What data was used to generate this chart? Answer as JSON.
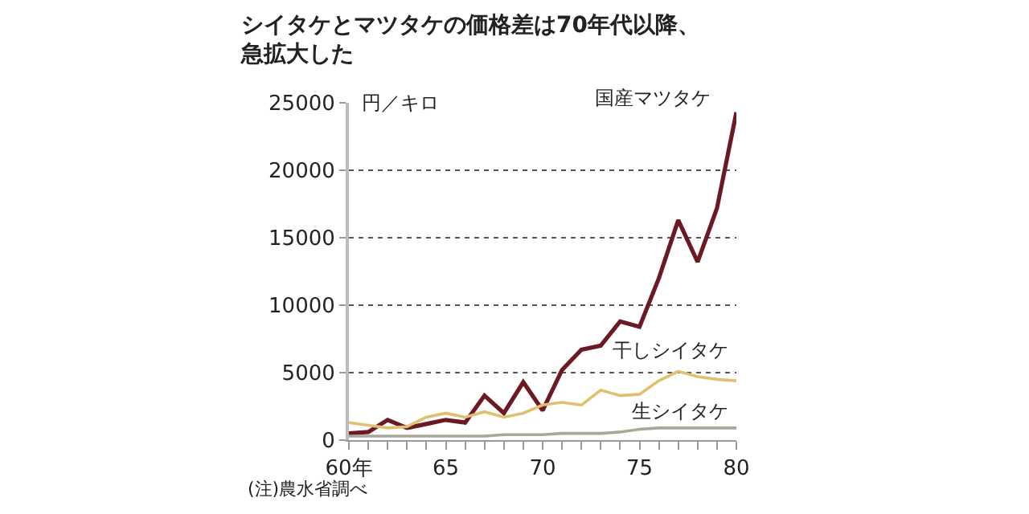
{
  "chart_data": {
    "type": "line",
    "title": "シイタケとマツタケの価格差は70年代以降、急拡大した",
    "ylabel": "円／キロ",
    "x": [
      60,
      61,
      62,
      63,
      64,
      65,
      66,
      67,
      68,
      69,
      70,
      71,
      72,
      73,
      74,
      75,
      76,
      77,
      78,
      79,
      80
    ],
    "series": [
      {
        "name": "国産マツタケ",
        "color": "#6b1a24",
        "values": [
          500,
          600,
          1500,
          900,
          1200,
          1500,
          1300,
          3300,
          2000,
          4300,
          2200,
          5200,
          6700,
          7000,
          8800,
          8400,
          12000,
          16300,
          13200,
          17200,
          24300
        ]
      },
      {
        "name": "干しシイタケ",
        "color": "#e0c070",
        "values": [
          1300,
          1100,
          900,
          1000,
          1700,
          2000,
          1700,
          2100,
          1700,
          2000,
          2600,
          2800,
          2600,
          3700,
          3300,
          3400,
          4400,
          5100,
          4700,
          4500,
          4400
        ]
      },
      {
        "name": "生シイタケ",
        "color": "#a8a898",
        "values": [
          300,
          300,
          300,
          300,
          300,
          300,
          300,
          300,
          400,
          400,
          400,
          500,
          500,
          500,
          600,
          800,
          900,
          900,
          900,
          900,
          900
        ]
      }
    ],
    "xlim": [
      60,
      80
    ],
    "ylim": [
      0,
      25000
    ],
    "xticks": [
      {
        "value": 60,
        "label": "60年"
      },
      {
        "value": 61,
        "label": null
      },
      {
        "value": 62,
        "label": null
      },
      {
        "value": 63,
        "label": null
      },
      {
        "value": 64,
        "label": null
      },
      65,
      {
        "value": 66,
        "label": null
      },
      {
        "value": 67,
        "label": null
      },
      {
        "value": 68,
        "label": null
      },
      {
        "value": 69,
        "label": null
      },
      70,
      {
        "value": 71,
        "label": null
      },
      {
        "value": 72,
        "label": null
      },
      {
        "value": 73,
        "label": null
      },
      {
        "value": 74,
        "label": null
      },
      75,
      {
        "value": 76,
        "label": null
      },
      {
        "value": 77,
        "label": null
      },
      {
        "value": 78,
        "label": null
      },
      {
        "value": 79,
        "label": null
      },
      80
    ],
    "yticks": [
      0,
      5000,
      10000,
      15000,
      20000,
      25000
    ],
    "grid": "y",
    "legend": false,
    "marker": "none",
    "line_style": "solid",
    "annotations": [
      "(注)農水省調べ"
    ]
  }
}
